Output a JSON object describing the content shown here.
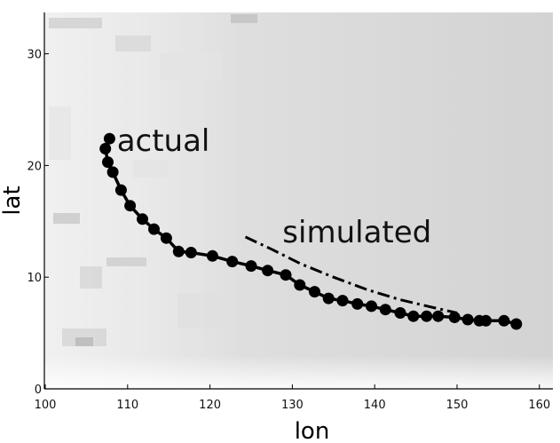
{
  "chart_data": {
    "type": "line",
    "xlabel": "lon",
    "ylabel": "lat",
    "xlim": [
      100,
      162
    ],
    "ylim": [
      0,
      34
    ],
    "xticks": [
      100,
      110,
      120,
      130,
      140,
      150,
      160
    ],
    "yticks": [
      0,
      10,
      20,
      30
    ],
    "grid": false,
    "annotations": [
      {
        "text": "actual",
        "x": 108.7,
        "y": 21.3
      },
      {
        "text": "simulated",
        "x": 128.8,
        "y": 13.1
      }
    ],
    "series": [
      {
        "style": "solid-with-markers",
        "color": "#000000",
        "points": [
          [
            107.8,
            22.4
          ],
          [
            107.3,
            21.5
          ],
          [
            107.6,
            20.3
          ],
          [
            108.2,
            19.4
          ],
          [
            109.2,
            17.8
          ],
          [
            110.3,
            16.4
          ],
          [
            111.8,
            15.2
          ],
          [
            113.2,
            14.3
          ],
          [
            114.7,
            13.5
          ],
          [
            116.2,
            12.3
          ],
          [
            117.7,
            12.2
          ],
          [
            120.3,
            11.9
          ],
          [
            122.7,
            11.4
          ],
          [
            125.0,
            11.0
          ],
          [
            127.0,
            10.6
          ],
          [
            129.2,
            10.2
          ],
          [
            130.9,
            9.3
          ],
          [
            132.7,
            8.7
          ],
          [
            134.4,
            8.1
          ],
          [
            136.1,
            7.9
          ],
          [
            137.9,
            7.6
          ],
          [
            139.6,
            7.4
          ],
          [
            141.3,
            7.1
          ],
          [
            143.1,
            6.8
          ],
          [
            144.7,
            6.5
          ],
          [
            146.3,
            6.5
          ],
          [
            147.7,
            6.5
          ],
          [
            149.7,
            6.4
          ],
          [
            151.3,
            6.2
          ],
          [
            152.7,
            6.1
          ],
          [
            153.5,
            6.1
          ],
          [
            155.7,
            6.1
          ],
          [
            157.2,
            5.8
          ]
        ]
      },
      {
        "style": "dash-dot",
        "color": "#000000",
        "points": [
          [
            124.3,
            13.6
          ],
          [
            127.5,
            12.5
          ],
          [
            131.0,
            11.2
          ],
          [
            135.0,
            10.0
          ],
          [
            139.0,
            8.9
          ],
          [
            143.0,
            8.0
          ],
          [
            147.0,
            7.3
          ],
          [
            150.0,
            6.8
          ]
        ]
      }
    ]
  }
}
